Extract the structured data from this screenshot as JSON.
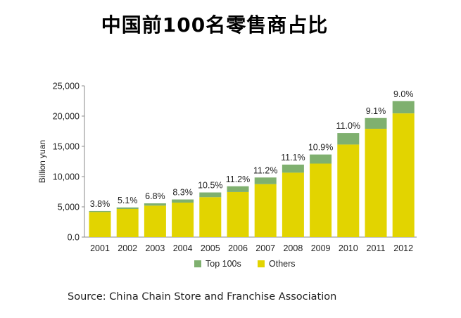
{
  "chart_data": {
    "type": "bar",
    "stacked": true,
    "title": "中国前100名零售商占比",
    "ylabel": "Billion yuan",
    "xlabel": "",
    "ylim": [
      0,
      25000
    ],
    "yticks": [
      "25,000",
      "20,000",
      "15,000",
      "10,000",
      "5,000",
      "0.0"
    ],
    "ytick_values": [
      25000,
      20000,
      15000,
      10000,
      5000,
      0
    ],
    "categories": [
      "2001",
      "2002",
      "2003",
      "2004",
      "2005",
      "2006",
      "2007",
      "2008",
      "2009",
      "2010",
      "2011",
      "2012"
    ],
    "series": [
      {
        "name": "Others",
        "color": "#e2d400",
        "values": [
          4150,
          4650,
          5200,
          5700,
          6600,
          7450,
          8750,
          10650,
          12150,
          15300,
          17900,
          20450
        ]
      },
      {
        "name": "Top 100s",
        "color": "#7fb06f",
        "values": [
          160,
          250,
          380,
          520,
          780,
          950,
          1100,
          1330,
          1500,
          1900,
          1780,
          2020
        ]
      }
    ],
    "data_labels": [
      "3.8%",
      "5.1%",
      "6.8%",
      "8.3%",
      "10.5%",
      "11.2%",
      "11.2%",
      "11.1%",
      "10.9%",
      "11.0%",
      "9.1%",
      "9.0%"
    ],
    "legend": [
      "Top 100s",
      "Others"
    ],
    "legend_placement": "bottom-center"
  },
  "source": "Source: China Chain Store and Franchise Association"
}
